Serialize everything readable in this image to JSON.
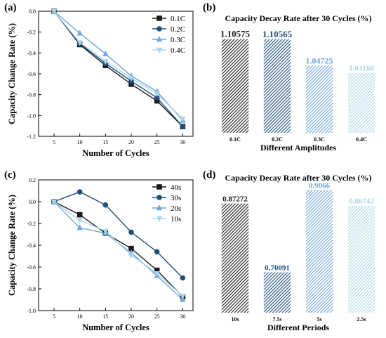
{
  "panel_labels": [
    "(a)",
    "(b)",
    "(c)",
    "(d)"
  ],
  "colors": {
    "black": "#1a1a1a",
    "dark_blue": "#1f4e79",
    "mid_blue": "#6fa8dc",
    "light_blue": "#a9d6e5"
  },
  "chart_data": [
    {
      "type": "line",
      "panel": "(a)",
      "title": "",
      "xlabel": "Number of Cycles",
      "ylabel": "Capacity Change Rate (%)",
      "x": [
        5,
        10,
        15,
        20,
        25,
        30
      ],
      "xlim": [
        2,
        32
      ],
      "ylim": [
        -1.2,
        0.0
      ],
      "yticks": [
        "0.0",
        "-0.2",
        "-0.4",
        "-0.6",
        "-0.8",
        "-1.0",
        "-1.2"
      ],
      "ytick_values": [
        0.0,
        -0.2,
        -0.4,
        -0.6,
        -0.8,
        -1.0,
        -1.2
      ],
      "xticks": [
        5,
        10,
        15,
        20,
        25,
        30
      ],
      "legend": "top-right",
      "series": [
        {
          "name": "0.1C",
          "marker": "square",
          "color": "#1a1a1a",
          "values": [
            0.0,
            -0.32,
            -0.52,
            -0.7,
            -0.86,
            -1.106
          ]
        },
        {
          "name": "0.2C",
          "marker": "circle",
          "color": "#1f4e79",
          "values": [
            0.0,
            -0.31,
            -0.5,
            -0.67,
            -0.83,
            -1.106
          ]
        },
        {
          "name": "0.3C",
          "marker": "triangle",
          "color": "#6fa8dc",
          "values": [
            0.0,
            -0.21,
            -0.41,
            -0.62,
            -0.77,
            -1.047
          ]
        },
        {
          "name": "0.4C",
          "marker": "tri-down",
          "color": "#a9d6e5",
          "values": [
            0.0,
            -0.3,
            -0.48,
            -0.64,
            -0.79,
            -1.032
          ]
        }
      ]
    },
    {
      "type": "bar",
      "panel": "(b)",
      "title": "Capacity Decay Rate after 30 Cycles (%)",
      "xlabel": "Different Amplitudes",
      "ylabel": "",
      "ylim": [
        0.9,
        1.13
      ],
      "categories": [
        "0.1C",
        "0.2C",
        "0.3C",
        "0.4C"
      ],
      "values": [
        1.10575,
        1.10565,
        1.04725,
        1.03168
      ],
      "labels": [
        "1.10575",
        "1.10565",
        "1.04725",
        "1.03168"
      ],
      "label_sizes": [
        13,
        13,
        12,
        11
      ],
      "colors": [
        "#1a1a1a",
        "#1f4e79",
        "#6fa8dc",
        "#a9d6e5"
      ]
    },
    {
      "type": "line",
      "panel": "(c)",
      "title": "",
      "xlabel": "Number of Cycles",
      "ylabel": "Capacity Change Rate (%)",
      "x": [
        5,
        10,
        15,
        20,
        25,
        30
      ],
      "xlim": [
        2,
        32
      ],
      "ylim": [
        -1.0,
        0.2
      ],
      "yticks": [
        "0.2",
        "0.0",
        "-0.2",
        "-0.4",
        "-0.6",
        "-0.8",
        "-1.0"
      ],
      "ytick_values": [
        0.2,
        0.0,
        -0.2,
        -0.4,
        -0.6,
        -0.8,
        -1.0
      ],
      "xticks": [
        5,
        10,
        15,
        20,
        25,
        30
      ],
      "legend": "top-right",
      "series": [
        {
          "name": "40s",
          "marker": "square",
          "color": "#1a1a1a",
          "values": [
            0.0,
            -0.12,
            -0.29,
            -0.43,
            -0.63,
            -0.873
          ]
        },
        {
          "name": "30s",
          "marker": "circle",
          "color": "#1f4e79",
          "values": [
            0.0,
            0.09,
            -0.03,
            -0.28,
            -0.46,
            -0.7
          ]
        },
        {
          "name": "20s",
          "marker": "triangle",
          "color": "#6fa8dc",
          "values": [
            0.0,
            -0.24,
            -0.29,
            -0.47,
            -0.68,
            -0.9
          ]
        },
        {
          "name": "10s",
          "marker": "tri-down",
          "color": "#a9d6e5",
          "values": [
            0.0,
            -0.17,
            -0.27,
            -0.49,
            -0.66,
            -0.867
          ]
        }
      ]
    },
    {
      "type": "bar",
      "panel": "(d)",
      "title": "Capacity Decay Rate after 30 Cycles (%)",
      "xlabel": "Different Periods",
      "ylabel": "",
      "ylim": [
        0.6,
        0.93
      ],
      "categories": [
        "10s",
        "7.5s",
        "5s",
        "2.5s"
      ],
      "values": [
        0.87272,
        0.70091,
        0.9066,
        0.86742
      ],
      "labels": [
        "0.87272",
        "0.70091",
        "0.9066",
        "0.86742"
      ],
      "label_sizes": [
        11,
        11,
        11,
        11
      ],
      "colors": [
        "#1a1a1a",
        "#1f4e79",
        "#6fa8dc",
        "#a9d6e5"
      ]
    }
  ]
}
